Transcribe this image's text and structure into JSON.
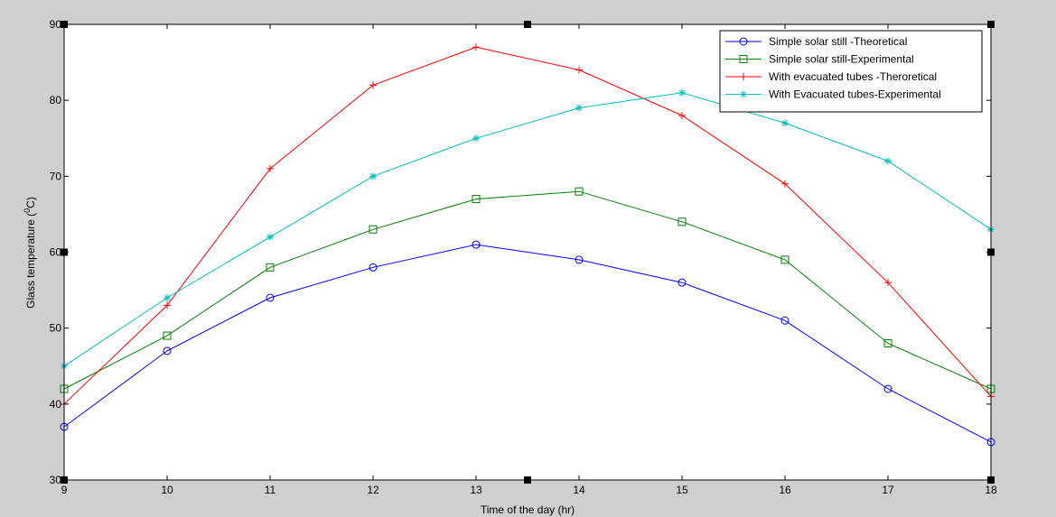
{
  "chart_data": {
    "type": "line",
    "xlabel": "Time of the day (hr)",
    "ylabel": {
      "prefix": "Glass  temperature (",
      "sup": "0",
      "suffix": "C)"
    },
    "xlim": [
      9,
      18
    ],
    "ylim": [
      30,
      90
    ],
    "x": [
      9,
      10,
      11,
      12,
      13,
      14,
      15,
      16,
      17,
      18
    ],
    "xticks": [
      "9",
      "10",
      "11",
      "12",
      "13",
      "14",
      "15",
      "16",
      "17",
      "18"
    ],
    "yticks": [
      "30",
      "40",
      "50",
      "60",
      "70",
      "80",
      "90"
    ],
    "ytick_values": [
      30,
      40,
      50,
      60,
      70,
      80,
      90
    ],
    "grid": false,
    "legend_position": "top-right",
    "series": [
      {
        "name": "Simple solar still -Theoretical",
        "color": "#0000ff",
        "marker": "circle",
        "values": [
          37,
          47,
          54,
          58,
          61,
          59,
          56,
          51,
          42,
          35
        ]
      },
      {
        "name": "Simple solar still-Experimental",
        "color": "#008000",
        "marker": "square",
        "values": [
          42,
          49,
          58,
          63,
          67,
          68,
          64,
          59,
          48,
          42
        ]
      },
      {
        "name": "With evacuated tubes -Theroretical",
        "color": "#ff0000",
        "marker": "plus",
        "values": [
          40,
          53,
          71,
          82,
          87,
          84,
          78,
          69,
          56,
          41
        ]
      },
      {
        "name": "With Evacuated tubes-Experimental",
        "color": "#00bfbf",
        "marker": "asterisk",
        "values": [
          45,
          54,
          62,
          70,
          75,
          79,
          81,
          77,
          72,
          63
        ]
      }
    ]
  }
}
